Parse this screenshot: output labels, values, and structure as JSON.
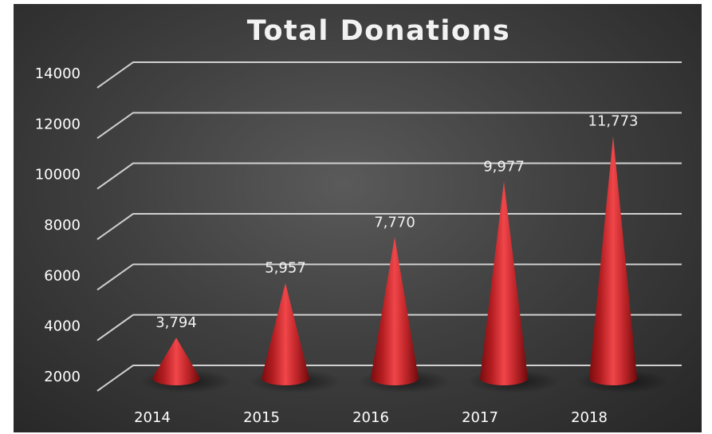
{
  "chart_data": {
    "type": "bar",
    "bar_shape": "cone",
    "title": "Total Donations",
    "categories": [
      "2014",
      "2015",
      "2016",
      "2017",
      "2018"
    ],
    "values": [
      3794,
      5957,
      7770,
      9977,
      11773
    ],
    "value_labels": [
      "3,794",
      "5,957",
      "7,770",
      "9,977",
      "11,773"
    ],
    "y_ticks": [
      "2000",
      "4000",
      "6000",
      "8000",
      "10000",
      "12000",
      "14000"
    ],
    "ylim": [
      2000,
      14000
    ],
    "grid": true,
    "legend": "none",
    "colors": {
      "background": "#404040",
      "cone": "#c0282b",
      "text": "#ffffff",
      "grid": "#d0d0d0"
    }
  }
}
